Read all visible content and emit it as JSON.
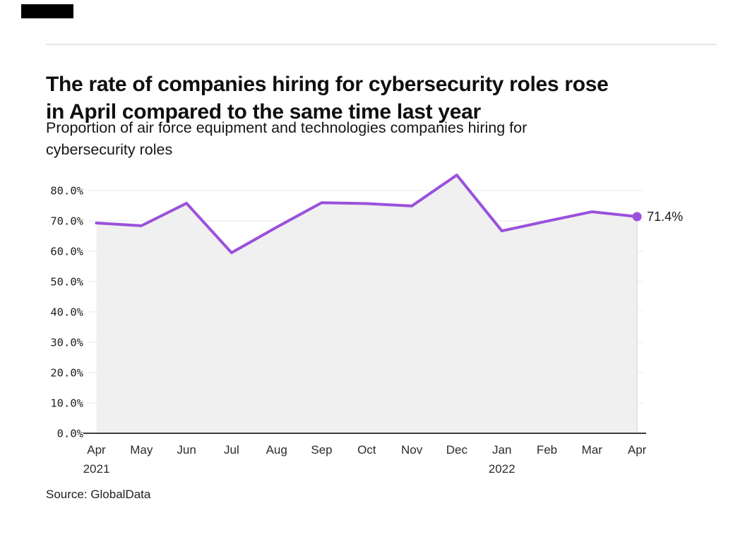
{
  "header": {
    "title_line1": "The rate of companies hiring for cybersecurity roles rose",
    "title_line2": "in April compared to the same time last year",
    "subtitle_line1": "Proportion of air force equipment and technologies companies hiring for",
    "subtitle_line2": "cybersecurity roles"
  },
  "chart_data": {
    "type": "area",
    "title": "The rate of companies hiring for cybersecurity roles rose in April compared to the same time last year",
    "subtitle": "Proportion of air force equipment and technologies companies hiring for cybersecurity roles",
    "categories": [
      "Apr 2021",
      "May",
      "Jun",
      "Jul",
      "Aug",
      "Sep",
      "Oct",
      "Nov",
      "Dec",
      "Jan 2022",
      "Feb",
      "Mar",
      "Apr"
    ],
    "series": [
      {
        "name": "Proportion of companies hiring for cybersecurity roles",
        "values": [
          69.3,
          68.4,
          75.8,
          59.5,
          67.9,
          76.0,
          75.7,
          74.9,
          85.1,
          66.7,
          69.9,
          73.0,
          71.4
        ]
      }
    ],
    "end_label": "71.4%",
    "xlabel": "",
    "ylabel": "",
    "ylim": [
      0,
      87
    ],
    "grid": true,
    "legend": "none",
    "colors": {
      "line": "#9B51DB",
      "marker": "#9B51DB",
      "fill": "#F0F0F0",
      "fill_edge": "#E2E2E2",
      "grid": "#E9E9E9",
      "axis": "#3F3F3F"
    }
  },
  "axis": {
    "yticks": [
      "0.0%",
      "10.0%",
      "20.0%",
      "30.0%",
      "40.0%",
      "50.0%",
      "60.0%",
      "70.0%",
      "80.0%"
    ],
    "xticks": [
      {
        "label": "Apr",
        "year": "2021"
      },
      {
        "label": "May",
        "year": ""
      },
      {
        "label": "Jun",
        "year": ""
      },
      {
        "label": "Jul",
        "year": ""
      },
      {
        "label": "Aug",
        "year": ""
      },
      {
        "label": "Sep",
        "year": ""
      },
      {
        "label": "Oct",
        "year": ""
      },
      {
        "label": "Nov",
        "year": ""
      },
      {
        "label": "Dec",
        "year": ""
      },
      {
        "label": "Jan",
        "year": "2022"
      },
      {
        "label": "Feb",
        "year": ""
      },
      {
        "label": "Mar",
        "year": ""
      },
      {
        "label": "Apr",
        "year": ""
      }
    ]
  },
  "footer": {
    "source": "Source: GlobalData"
  }
}
